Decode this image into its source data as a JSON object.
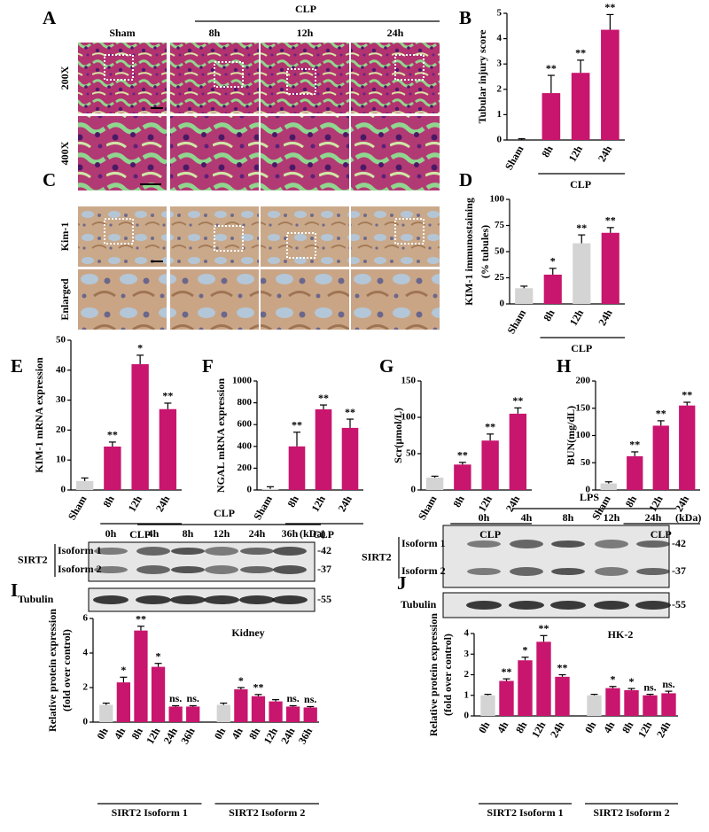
{
  "figure": {
    "panels": [
      "A",
      "B",
      "C",
      "D",
      "E",
      "F",
      "G",
      "H",
      "I",
      "J"
    ],
    "histology": {
      "group": "CLP",
      "columns": [
        "Sham",
        "8h",
        "12h",
        "24h"
      ],
      "rows_a": [
        "200X",
        "400X"
      ],
      "rows_c": [
        "Kim-1",
        "Enlarged"
      ]
    },
    "blot_i": {
      "group": "CLP",
      "lanes": [
        "0h",
        "4h",
        "8h",
        "12h",
        "24h",
        "36h"
      ],
      "unit": "(kDa)",
      "protein": "SIRT2",
      "isoforms": [
        "Isoform 1",
        "Isoform 2"
      ],
      "markers": [
        "-42",
        "-37"
      ],
      "control": "Tubulin",
      "control_marker": "-55"
    },
    "blot_j": {
      "group": "LPS",
      "lanes": [
        "0h",
        "4h",
        "8h",
        "12h",
        "24h"
      ],
      "unit": "(kDa)",
      "protein": "SIRT2",
      "isoforms": [
        "Isoform 1",
        "Isoform 2"
      ],
      "markers": [
        "-42",
        "-37"
      ],
      "control": "Tubulin",
      "control_marker": "-55"
    }
  },
  "chart_data": [
    {
      "type": "bar",
      "ylabel": "Tubular injury score",
      "categories": [
        "Sham",
        "8h",
        "12h",
        "24h"
      ],
      "group_label": "CLP",
      "values": [
        0,
        1.85,
        2.65,
        4.35
      ],
      "errors": [
        0.05,
        0.7,
        0.5,
        0.6
      ],
      "annotations": [
        null,
        "**",
        "**",
        "**"
      ],
      "colors": [
        "#d4d4d4",
        "#c8156e",
        "#c8156e",
        "#c8156e"
      ],
      "ylim": [
        0,
        5
      ],
      "yticks": [
        0,
        1,
        2,
        3,
        4,
        5
      ]
    },
    {
      "type": "bar",
      "ylabel": "KIM-1 immunostaining",
      "ylabel2": "(% tubules)",
      "categories": [
        "Sham",
        "8h",
        "12h",
        "24h"
      ],
      "group_label": "CLP",
      "values": [
        15,
        28,
        58,
        68
      ],
      "errors": [
        2,
        6,
        8,
        5
      ],
      "annotations": [
        null,
        "*",
        "**",
        "**"
      ],
      "colors": [
        "#d4d4d4",
        "#c8156e",
        "#d4d4d4",
        "#c8156e"
      ],
      "ylim": [
        0,
        100
      ],
      "yticks": [
        0,
        25,
        50,
        75,
        100
      ]
    },
    {
      "type": "bar",
      "ylabel": "KIM-1 mRNA expression",
      "categories": [
        "Sham",
        "8h",
        "12h",
        "24h"
      ],
      "group_label": "CLP",
      "values": [
        3,
        14.5,
        42,
        27
      ],
      "errors": [
        1,
        1.5,
        3,
        2
      ],
      "annotations": [
        null,
        "**",
        "*",
        "**"
      ],
      "colors": [
        "#d4d4d4",
        "#c8156e",
        "#c8156e",
        "#c8156e"
      ],
      "ylim": [
        0,
        50
      ],
      "yticks": [
        0,
        10,
        20,
        30,
        40,
        50
      ]
    },
    {
      "type": "bar",
      "ylabel": "NGAL mRNA expression",
      "categories": [
        "Sham",
        "8h",
        "12h",
        "24h"
      ],
      "group_label": "CLP",
      "values": [
        10,
        400,
        740,
        570
      ],
      "errors": [
        20,
        130,
        40,
        80
      ],
      "annotations": [
        null,
        "**",
        "**",
        "**"
      ],
      "colors": [
        "#d4d4d4",
        "#c8156e",
        "#c8156e",
        "#c8156e"
      ],
      "ylim": [
        0,
        1000
      ],
      "yticks": [
        0,
        200,
        400,
        600,
        800,
        1000
      ]
    },
    {
      "type": "bar",
      "ylabel": "Scr(μmol/L)",
      "categories": [
        "Sham",
        "8h",
        "12h",
        "24h"
      ],
      "group_label": "CLP",
      "values": [
        17,
        35,
        68,
        105
      ],
      "errors": [
        2,
        3,
        9,
        8
      ],
      "annotations": [
        null,
        "**",
        "**",
        "**"
      ],
      "colors": [
        "#d4d4d4",
        "#c8156e",
        "#c8156e",
        "#c8156e"
      ],
      "ylim": [
        0,
        150
      ],
      "yticks": [
        0,
        50,
        100,
        150
      ]
    },
    {
      "type": "bar",
      "ylabel": "BUN(mg/dL)",
      "categories": [
        "Sham",
        "8h",
        "12h",
        "24h"
      ],
      "group_label": "CLP",
      "values": [
        12,
        62,
        118,
        155
      ],
      "errors": [
        3,
        8,
        9,
        6
      ],
      "annotations": [
        null,
        "**",
        "**",
        "**"
      ],
      "colors": [
        "#d4d4d4",
        "#c8156e",
        "#c8156e",
        "#c8156e"
      ],
      "ylim": [
        0,
        200
      ],
      "yticks": [
        0,
        50,
        100,
        150,
        200
      ]
    },
    {
      "type": "grouped-bar",
      "title": "Kidney",
      "ylabel": "Relative protein expression",
      "ylabel2": "(fold over control)",
      "categories": [
        "0h",
        "4h",
        "8h",
        "12h",
        "24h",
        "36h"
      ],
      "ylim": [
        0,
        6
      ],
      "yticks": [
        0,
        2,
        4,
        6
      ],
      "groups": [
        {
          "name": "SIRT2 Isoform 1",
          "values": [
            1,
            2.3,
            5.3,
            3.2,
            0.9,
            0.9
          ],
          "errors": [
            0.1,
            0.3,
            0.25,
            0.2,
            0.05,
            0.05
          ],
          "annotations": [
            null,
            "*",
            "**",
            "*",
            "ns.",
            "ns."
          ],
          "colors": [
            "#d4d4d4",
            "#c8156e",
            "#c8156e",
            "#c8156e",
            "#c8156e",
            "#c8156e"
          ]
        },
        {
          "name": "SIRT2 Isoform 2",
          "values": [
            1,
            1.9,
            1.5,
            1.2,
            0.9,
            0.85
          ],
          "errors": [
            0.1,
            0.1,
            0.1,
            0.1,
            0.05,
            0.05
          ],
          "annotations": [
            null,
            "*",
            "**",
            null,
            "ns.",
            "ns."
          ],
          "colors": [
            "#d4d4d4",
            "#c8156e",
            "#c8156e",
            "#c8156e",
            "#c8156e",
            "#c8156e"
          ]
        }
      ]
    },
    {
      "type": "grouped-bar",
      "title": "HK-2",
      "ylabel": "Relative protein expression",
      "ylabel2": "(fold over control)",
      "categories": [
        "0h",
        "4h",
        "8h",
        "12h",
        "24h"
      ],
      "ylim": [
        0,
        4
      ],
      "yticks": [
        0,
        1,
        2,
        3,
        4
      ],
      "groups": [
        {
          "name": "SIRT2 Isoform 1",
          "values": [
            1,
            1.7,
            2.7,
            3.6,
            1.9
          ],
          "errors": [
            0.05,
            0.1,
            0.15,
            0.3,
            0.1
          ],
          "annotations": [
            null,
            "**",
            "*",
            "**",
            "**"
          ],
          "colors": [
            "#d4d4d4",
            "#c8156e",
            "#c8156e",
            "#c8156e",
            "#c8156e"
          ]
        },
        {
          "name": "SIRT2 Isoform 2",
          "values": [
            1,
            1.35,
            1.25,
            1.0,
            1.1
          ],
          "errors": [
            0.05,
            0.08,
            0.08,
            0.05,
            0.1
          ],
          "annotations": [
            null,
            "*",
            "*",
            "ns.",
            "ns."
          ],
          "colors": [
            "#d4d4d4",
            "#c8156e",
            "#c8156e",
            "#c8156e",
            "#c8156e"
          ]
        }
      ]
    }
  ]
}
